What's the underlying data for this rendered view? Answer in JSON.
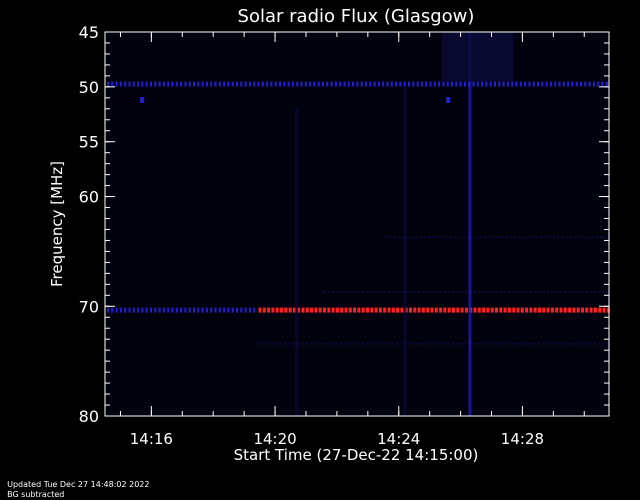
{
  "chart_data": {
    "type": "heatmap",
    "title": "Solar radio Flux (Glasgow)",
    "ylabel": "Frequency [MHz]",
    "xlabel": "Start Time (27-Dec-22 14:15:00)",
    "x_range_minutes": [
      14.5,
      30.8
    ],
    "y_range_mhz": [
      45,
      80
    ],
    "y_ticks": [
      {
        "value": 45,
        "label": "45"
      },
      {
        "value": 50,
        "label": "50"
      },
      {
        "value": 55,
        "label": "55"
      },
      {
        "value": 60,
        "label": "60"
      },
      {
        "value": 70,
        "label": "70"
      },
      {
        "value": 80,
        "label": "80"
      }
    ],
    "x_ticks": [
      {
        "minute": 16,
        "label": "14:16"
      },
      {
        "minute": 20,
        "label": "14:20"
      },
      {
        "minute": 24,
        "label": "14:24"
      },
      {
        "minute": 28,
        "label": "14:28"
      }
    ],
    "colors": {
      "background": "#000000",
      "axes": "#ffffff",
      "weak": "#0a0a3a",
      "medium": "#2020d0",
      "strong": "#ff2020"
    },
    "features": [
      {
        "kind": "band",
        "freq_mhz": 49.7,
        "start": 14.5,
        "end": 30.8,
        "level": "medium"
      },
      {
        "kind": "band",
        "freq_mhz": 70.3,
        "start": 14.5,
        "end": 19.4,
        "level": "medium"
      },
      {
        "kind": "band",
        "freq_mhz": 70.3,
        "start": 19.4,
        "end": 30.8,
        "level": "strong"
      },
      {
        "kind": "band",
        "freq_mhz": 68.8,
        "start": 21.5,
        "end": 30.8,
        "level": "weak"
      },
      {
        "kind": "band",
        "freq_mhz": 73.5,
        "start": 19.4,
        "end": 30.8,
        "level": "weak"
      },
      {
        "kind": "band",
        "freq_mhz": 63.8,
        "start": 23.5,
        "end": 30.8,
        "level": "weak"
      },
      {
        "kind": "column",
        "minute": 20.7,
        "freq_from": 52,
        "freq_to": 80,
        "level": "weak"
      },
      {
        "kind": "column",
        "minute": 24.2,
        "freq_from": 50,
        "freq_to": 80,
        "level": "weak"
      },
      {
        "kind": "column",
        "minute": 26.3,
        "freq_from": 45,
        "freq_to": 80,
        "level": "medium"
      },
      {
        "kind": "patch",
        "minute_from": 25.4,
        "minute_to": 27.7,
        "freq_from": 45,
        "freq_to": 49.5,
        "level": "weak"
      },
      {
        "kind": "spot",
        "minute": 15.7,
        "freq_mhz": 51.2,
        "level": "medium"
      },
      {
        "kind": "spot",
        "minute": 25.6,
        "freq_mhz": 51.2,
        "level": "medium"
      }
    ]
  },
  "footer": {
    "updated": "Updated Tue Dec 27 14:48:02 2022",
    "note": "BG subtracted"
  }
}
